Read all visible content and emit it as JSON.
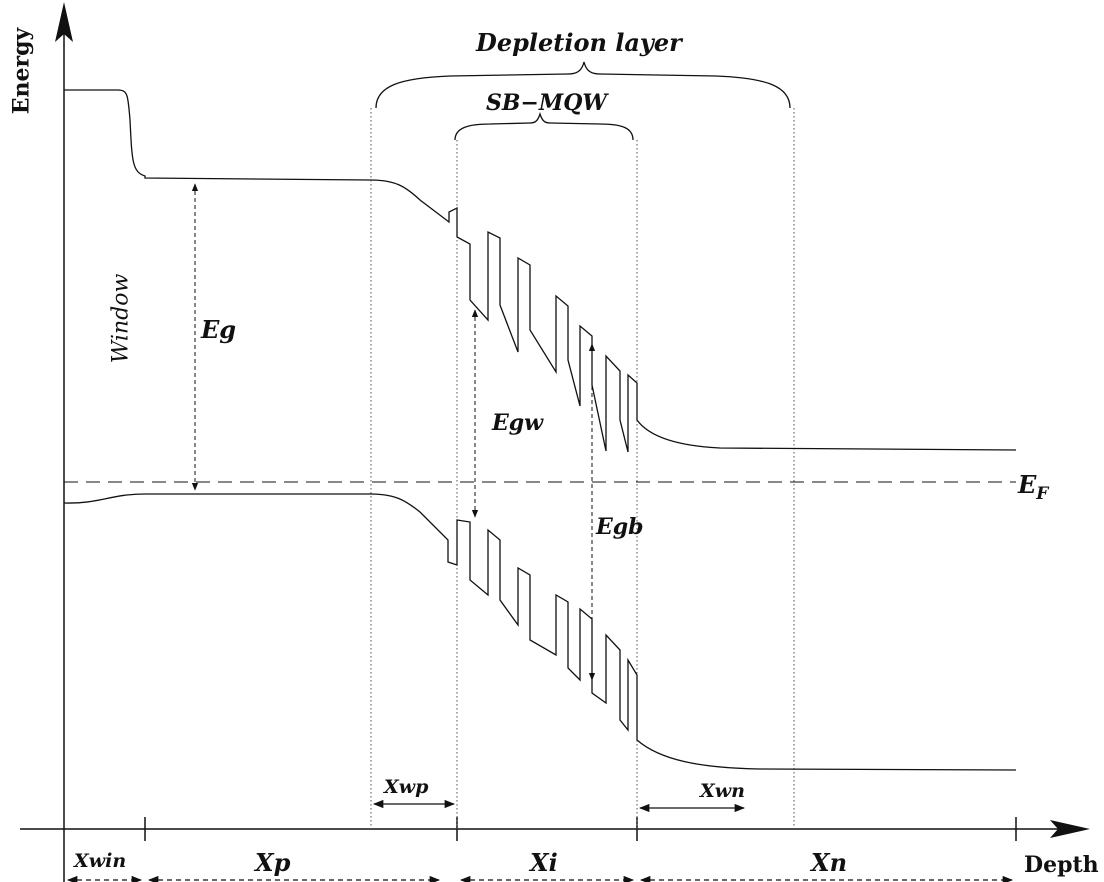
{
  "axes": {
    "y_label": "Energy",
    "x_label": "Depth"
  },
  "labels": {
    "depletion_layer": "Depletion layer",
    "sb_mqw": "SB−MQW",
    "window": "Window",
    "eg": "Eg",
    "egw": "Egw",
    "egb": "Egb",
    "fermi_main": "E",
    "fermi_sub": "F"
  },
  "regions": {
    "xwin": "Xwin",
    "xp": "Xp",
    "xi": "Xi",
    "xn": "Xn",
    "xwp": "Xwp",
    "xwn": "Xwn"
  }
}
